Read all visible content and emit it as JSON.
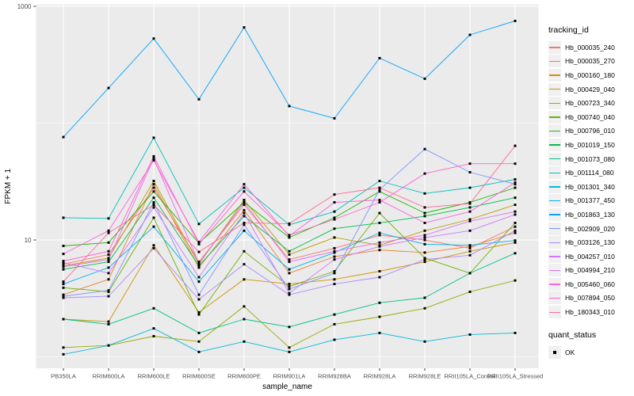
{
  "chart_data": {
    "type": "line",
    "title": "",
    "xlabel": "sample_name",
    "ylabel": "FPKM + 1",
    "y_scale": "log10",
    "ylim": [
      0.8,
      1030
    ],
    "grid": true,
    "legend_position": "right",
    "panel_bg": "#EBEBEB",
    "grid_color": "#FFFFFF",
    "tick_color": "#333333",
    "tick_label_color": "#4D4D4D",
    "point_color": "#000000",
    "y_ticks": [
      {
        "value": 10,
        "label": "10"
      },
      {
        "value": 1000,
        "label": "1000"
      }
    ],
    "y_minor_gridlines": [
      1,
      100
    ],
    "x": [
      "PB350LA",
      "RRIM600LA",
      "RRIM600LE",
      "RRIM600SE",
      "RRIM600PE",
      "RRIM901LA",
      "RRIM928BA",
      "RRIM928LA",
      "RRIM928LE",
      "RRII105LA_Control",
      "RRII105LA_Stressed"
    ],
    "series": [
      {
        "name": "Hb_000035_240",
        "color": "#F8766D",
        "values": [
          6.2,
          7.5,
          28,
          6.5,
          20,
          6.8,
          8.5,
          11,
          10,
          8.5,
          13
        ]
      },
      {
        "name": "Hb_000035_270",
        "color": "#E8842F",
        "values": [
          3.4,
          4.6,
          30,
          5.8,
          18,
          5.2,
          7.2,
          8.2,
          7.8,
          8.8,
          11.5
        ]
      },
      {
        "name": "Hb_000160_180",
        "color": "#D29200",
        "values": [
          2.1,
          2.0,
          9.0,
          2.4,
          4.6,
          4.2,
          4.6,
          5.4,
          6.5,
          8.0,
          9.5
        ]
      },
      {
        "name": "Hb_000429_040",
        "color": "#B89D00",
        "values": [
          6.0,
          7.0,
          32,
          6.2,
          22,
          7.5,
          10.5,
          9.0,
          12,
          15,
          20
        ]
      },
      {
        "name": "Hb_000723_340",
        "color": "#99A800",
        "values": [
          1.2,
          1.25,
          1.5,
          1.35,
          2.7,
          1.2,
          1.9,
          2.2,
          2.6,
          3.6,
          4.5
        ]
      },
      {
        "name": "Hb_000740_040",
        "color": "#6BB100",
        "values": [
          3.9,
          3.6,
          15.5,
          2.3,
          8.0,
          4.0,
          5.4,
          17,
          7.0,
          5.2,
          14
        ]
      },
      {
        "name": "Hb_000796_010",
        "color": "#1FB800",
        "values": [
          8.9,
          9.5,
          26,
          9.4,
          21,
          10.5,
          15.5,
          26,
          17,
          21,
          28
        ]
      },
      {
        "name": "Hb_001019_150",
        "color": "#00BC51",
        "values": [
          5.6,
          6.5,
          23,
          6.0,
          16,
          8.0,
          12.5,
          14,
          16,
          19,
          23
        ]
      },
      {
        "name": "Hb_001073_080",
        "color": "#00C08A",
        "values": [
          2.1,
          1.9,
          2.6,
          1.6,
          2.1,
          1.8,
          2.3,
          2.9,
          3.2,
          5.2,
          7.7
        ]
      },
      {
        "name": "Hb_001114_080",
        "color": "#00C1B8",
        "values": [
          15.5,
          15.3,
          75,
          13.7,
          28,
          13.5,
          17.5,
          32,
          25,
          28,
          33
        ]
      },
      {
        "name": "Hb_001301_340",
        "color": "#00BBDA",
        "values": [
          1.05,
          1.25,
          1.75,
          1.1,
          1.35,
          1.1,
          1.4,
          1.6,
          1.35,
          1.55,
          1.6
        ]
      },
      {
        "name": "Hb_001377_450",
        "color": "#00B1F2",
        "values": [
          4.2,
          5.8,
          13,
          4.4,
          12,
          5.6,
          7.8,
          11.5,
          9.2,
          9.0,
          9.9
        ]
      },
      {
        "name": "Hb_001863_130",
        "color": "#00A5FF",
        "values": [
          76,
          200,
          530,
          160,
          660,
          140,
          110,
          360,
          240,
          570,
          750
        ]
      },
      {
        "name": "Hb_002909_020",
        "color": "#7F96FF",
        "values": [
          3.3,
          3.7,
          21,
          3.4,
          13.5,
          3.8,
          5.2,
          27,
          60,
          38,
          30
        ]
      },
      {
        "name": "Hb_003126_130",
        "color": "#AC88FF",
        "values": [
          3.2,
          3.3,
          8.5,
          3.1,
          6.2,
          3.4,
          4.2,
          4.8,
          6.8,
          7.4,
          12
        ]
      },
      {
        "name": "Hb_004257_010",
        "color": "#CF78FF",
        "values": [
          6.4,
          5.2,
          19,
          4.8,
          17,
          3.5,
          6.8,
          8.8,
          10.5,
          12,
          16.5
        ]
      },
      {
        "name": "Hb_004994_210",
        "color": "#E76BF3",
        "values": [
          5.9,
          6.8,
          50,
          6.3,
          21,
          6.5,
          8.0,
          9.5,
          11,
          14.5,
          17.5
        ]
      },
      {
        "name": "Hb_005460_060",
        "color": "#F763E0",
        "values": [
          7.6,
          12,
          48,
          9.6,
          30,
          10.8,
          21,
          22,
          14,
          17.5,
          31
        ]
      },
      {
        "name": "Hb_007894_050",
        "color": "#FF61C7",
        "values": [
          6.6,
          8.0,
          52,
          9.2,
          26,
          11,
          15,
          21,
          37,
          45,
          45
        ]
      },
      {
        "name": "Hb_180343_010",
        "color": "#FF6A98",
        "values": [
          4.4,
          11.5,
          20,
          7.9,
          14,
          13.8,
          24.5,
          28,
          19,
          20.5,
          64
        ]
      }
    ]
  },
  "legend": {
    "color_title": "tracking_id",
    "shape_title": "quant_status",
    "shape_items": [
      {
        "label": "OK"
      }
    ]
  }
}
